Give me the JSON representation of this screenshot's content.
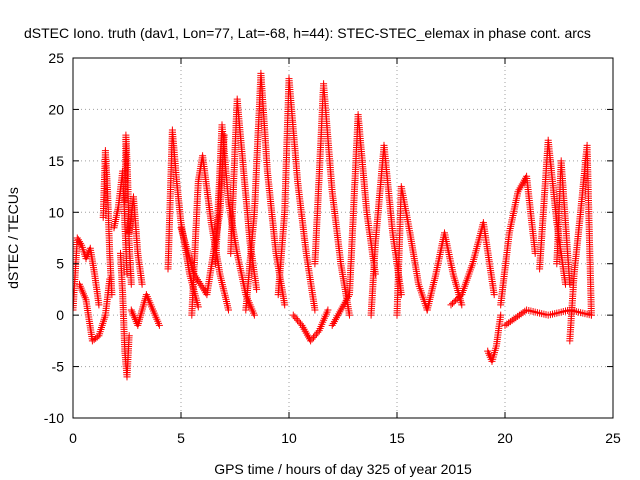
{
  "chart_data": {
    "type": "scatter",
    "title": "dSTEC Iono. truth (dav1, Lon=77, Lat=-68, h=44): STEC-STEC_elemax in phase cont. arcs",
    "xlabel": "GPS time / hours of day 325 of year 2015",
    "ylabel": "dSTEC  / TECUs",
    "xlim": [
      0,
      25
    ],
    "ylim": [
      -10,
      25
    ],
    "x_ticks": [
      0,
      5,
      10,
      15,
      20,
      25
    ],
    "y_ticks": [
      -10,
      -5,
      0,
      5,
      10,
      15,
      20,
      25
    ],
    "x_tick_labels": [
      "0",
      "5",
      "10",
      "15",
      "20",
      "25"
    ],
    "y_tick_labels": [
      "-10",
      "-5",
      "0",
      "5",
      "10",
      "15",
      "20",
      "25"
    ],
    "grid": true,
    "marker": "+",
    "series": [
      {
        "color": "#ff0000",
        "arcs": [
          {
            "x": [
              0.0,
              0.2,
              0.4,
              0.6,
              0.8,
              1.0,
              1.2
            ],
            "y": [
              0.5,
              7.5,
              6.8,
              5.5,
              6.5,
              4.0,
              1.0
            ]
          },
          {
            "x": [
              0.3,
              0.6,
              0.9,
              1.2,
              1.5,
              1.7
            ],
            "y": [
              3.0,
              1.5,
              -2.5,
              -2.0,
              0.0,
              3.5
            ]
          },
          {
            "x": [
              1.4,
              1.5,
              1.6,
              1.7,
              1.8
            ],
            "y": [
              9.5,
              16.0,
              12.0,
              6.0,
              2.0
            ]
          },
          {
            "x": [
              1.9,
              2.1,
              2.3,
              2.4,
              2.5
            ],
            "y": [
              8.5,
              10.5,
              14.0,
              9.0,
              4.0
            ]
          },
          {
            "x": [
              2.2,
              2.3,
              2.4,
              2.5,
              2.6
            ],
            "y": [
              6.0,
              2.0,
              -3.5,
              -6.0,
              -2.0
            ]
          },
          {
            "x": [
              2.4,
              2.45,
              2.5,
              2.55,
              2.6,
              2.7
            ],
            "y": [
              11.0,
              17.5,
              15.0,
              12.0,
              7.0,
              3.0
            ]
          },
          {
            "x": [
              2.6,
              2.8,
              3.0,
              3.2
            ],
            "y": [
              8.0,
              11.5,
              6.0,
              3.0
            ]
          },
          {
            "x": [
              2.7,
              3.0,
              3.4,
              3.8,
              4.0
            ],
            "y": [
              0.5,
              -1.0,
              2.0,
              0.0,
              -1.0
            ]
          },
          {
            "x": [
              4.4,
              4.6,
              4.8,
              5.0,
              5.4,
              5.8
            ],
            "y": [
              4.5,
              18.0,
              13.0,
              9.0,
              4.0,
              0.8
            ]
          },
          {
            "x": [
              5.5,
              5.8,
              6.0,
              6.4,
              6.8,
              7.2
            ],
            "y": [
              0.0,
              13.0,
              15.5,
              9.0,
              4.0,
              0.5
            ]
          },
          {
            "x": [
              5.0,
              5.6,
              6.2,
              6.8,
              7.0
            ],
            "y": [
              8.5,
              4.0,
              2.0,
              10.0,
              17.5
            ]
          },
          {
            "x": [
              6.6,
              6.9,
              7.2,
              7.6,
              8.0,
              8.4
            ],
            "y": [
              5.0,
              18.5,
              11.0,
              6.0,
              2.0,
              0.0
            ]
          },
          {
            "x": [
              7.3,
              7.6,
              7.9,
              8.2,
              8.5
            ],
            "y": [
              6.0,
              21.0,
              14.0,
              7.0,
              2.5
            ]
          },
          {
            "x": [
              8.0,
              8.4,
              8.7,
              9.0,
              9.4,
              9.8
            ],
            "y": [
              0.5,
              10.0,
              23.5,
              14.0,
              6.0,
              1.0
            ]
          },
          {
            "x": [
              9.5,
              9.8,
              10.0,
              10.4,
              10.8,
              11.2
            ],
            "y": [
              2.0,
              10.0,
              23.0,
              13.0,
              6.0,
              0.5
            ]
          },
          {
            "x": [
              10.2,
              10.6,
              11.0,
              11.4,
              11.8
            ],
            "y": [
              0.0,
              -1.0,
              -2.5,
              -1.5,
              0.5
            ]
          },
          {
            "x": [
              11.2,
              11.5,
              11.6,
              12.0,
              12.4,
              12.8
            ],
            "y": [
              5.0,
              18.0,
              22.5,
              12.0,
              5.0,
              0.0
            ]
          },
          {
            "x": [
              12.0,
              12.8,
              13.2,
              13.6,
              14.0
            ],
            "y": [
              -1.0,
              2.0,
              19.5,
              10.0,
              4.0
            ]
          },
          {
            "x": [
              13.8,
              14.0,
              14.4,
              14.8,
              15.2
            ],
            "y": [
              0.0,
              7.0,
              16.5,
              8.0,
              2.0
            ]
          },
          {
            "x": [
              15.0,
              15.2,
              15.6,
              16.0,
              16.4
            ],
            "y": [
              0.0,
              12.5,
              8.0,
              3.0,
              0.5
            ]
          },
          {
            "x": [
              16.4,
              16.8,
              17.2,
              17.6,
              18.0
            ],
            "y": [
              0.5,
              4.0,
              8.0,
              4.0,
              1.0
            ]
          },
          {
            "x": [
              17.5,
              18.0,
              18.5,
              19.0,
              19.5
            ],
            "y": [
              1.0,
              2.0,
              5.0,
              9.0,
              2.0
            ]
          },
          {
            "x": [
              19.2,
              19.4,
              19.6,
              19.8
            ],
            "y": [
              -3.5,
              -4.5,
              -3.0,
              0.0
            ]
          },
          {
            "x": [
              19.8,
              20.2,
              20.6,
              21.0,
              21.4
            ],
            "y": [
              1.0,
              8.0,
              12.0,
              13.5,
              6.0
            ]
          },
          {
            "x": [
              21.6,
              22.0,
              22.4,
              22.8
            ],
            "y": [
              4.5,
              17.0,
              9.0,
              3.0
            ]
          },
          {
            "x": [
              22.4,
              22.6,
              22.8,
              23.0
            ],
            "y": [
              5.0,
              15.0,
              9.0,
              3.0
            ]
          },
          {
            "x": [
              23.0,
              23.2,
              23.5,
              23.8,
              24.0
            ],
            "y": [
              -2.5,
              4.0,
              10.0,
              16.5,
              0.0
            ]
          },
          {
            "x": [
              20.0,
              21.0,
              22.0,
              23.0,
              24.0
            ],
            "y": [
              -1.0,
              0.5,
              0.0,
              0.5,
              0.0
            ]
          }
        ]
      }
    ]
  }
}
